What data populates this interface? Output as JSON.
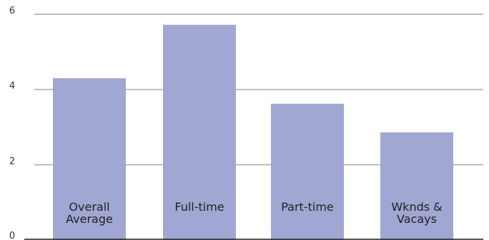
{
  "chart_data": {
    "type": "bar",
    "categories": [
      "Overall Average",
      "Full-time",
      "Part-time",
      "Wknds & Vacays"
    ],
    "category_labels": [
      [
        "Overall",
        "Average"
      ],
      [
        "Full-time"
      ],
      [
        "Part-time"
      ],
      [
        "Wknds &",
        "Vacays"
      ]
    ],
    "values": [
      4.3,
      5.72,
      3.62,
      2.86
    ],
    "ylim": [
      0,
      6
    ],
    "yticks": [
      "0",
      "2",
      "4",
      "6"
    ],
    "title": "",
    "xlabel": "",
    "ylabel": "",
    "grid": true,
    "legend": "none",
    "colors": {
      "bar": "#a0a7d3",
      "grid": "#a8a8a8",
      "baseline": "#222222",
      "text": "#222222"
    }
  }
}
